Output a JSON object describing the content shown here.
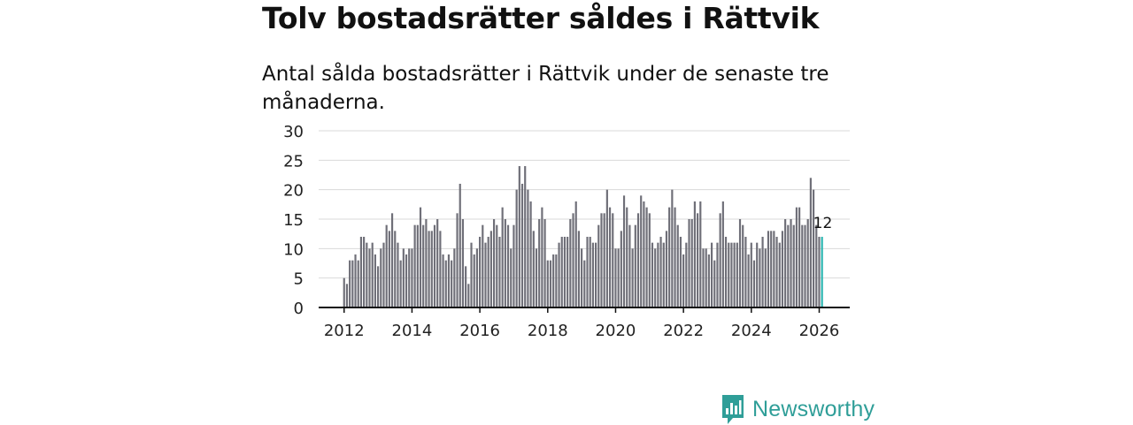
{
  "header": {
    "title": "Tolv bostadsrätter såldes i Rättvik",
    "subtitle": "Antal sålda bostadsrätter i Rättvik under de senaste tre månaderna."
  },
  "brand": {
    "name": "Newsworthy"
  },
  "colors": {
    "bar": "#6f6f78",
    "highlight": "#2ab5b0",
    "grid": "#d9d9d9",
    "axis": "#111111",
    "brand": "#2f9e98"
  },
  "chart_data": {
    "type": "bar",
    "title": "Antal sålda bostadsrätter i Rättvik under de senaste tre månaderna.",
    "xlabel": "",
    "ylabel": "",
    "ylim": [
      0,
      30
    ],
    "yticks": [
      0,
      5,
      10,
      15,
      20,
      25,
      30
    ],
    "xlim": [
      2011.25,
      2026.9
    ],
    "xticks": [
      2012,
      2014,
      2016,
      2018,
      2020,
      2022,
      2024,
      2026
    ],
    "x_start": 2012.0,
    "x_step": 0.08333,
    "values": [
      5,
      4,
      8,
      8,
      9,
      8,
      12,
      12,
      11,
      10,
      11,
      9,
      7,
      10,
      11,
      14,
      13,
      16,
      13,
      11,
      8,
      10,
      9,
      10,
      10,
      14,
      14,
      17,
      14,
      15,
      13,
      13,
      14,
      15,
      13,
      9,
      8,
      9,
      8,
      10,
      16,
      21,
      15,
      7,
      4,
      11,
      9,
      10,
      12,
      14,
      11,
      12,
      13,
      15,
      14,
      12,
      17,
      15,
      14,
      10,
      14,
      20,
      24,
      21,
      24,
      20,
      18,
      13,
      10,
      15,
      17,
      15,
      8,
      8,
      9,
      9,
      11,
      12,
      12,
      12,
      15,
      16,
      18,
      13,
      10,
      8,
      12,
      12,
      11,
      11,
      14,
      16,
      16,
      20,
      17,
      16,
      10,
      10,
      13,
      19,
      17,
      14,
      10,
      14,
      16,
      19,
      18,
      17,
      16,
      11,
      10,
      11,
      12,
      11,
      13,
      17,
      20,
      17,
      14,
      12,
      9,
      11,
      15,
      15,
      18,
      16,
      18,
      10,
      10,
      9,
      11,
      8,
      11,
      16,
      18,
      12,
      11,
      11,
      11,
      11,
      15,
      14,
      12,
      9,
      11,
      8,
      11,
      10,
      12,
      10,
      13,
      13,
      13,
      12,
      11,
      13,
      15,
      14,
      15,
      14,
      17,
      17,
      14,
      14,
      15,
      22,
      20,
      14,
      12,
      12
    ],
    "highlight_last": 1,
    "annotation": {
      "text": "12",
      "value": 12
    }
  }
}
